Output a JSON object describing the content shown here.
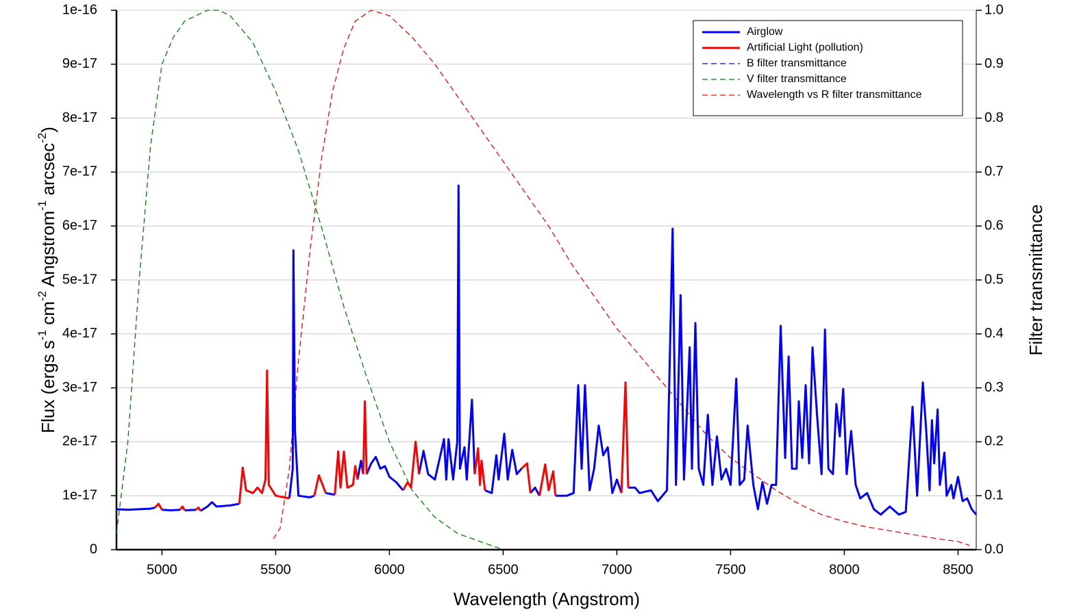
{
  "chart_data": {
    "type": "line",
    "xlabel": "Wavelength (Angstrom)",
    "ylabel_parts": [
      "Flux (ergs s",
      "-1",
      " cm",
      "-2",
      " Angstrom",
      "-1",
      " arcsec",
      "-2",
      ")"
    ],
    "y2label": "Filter transmittance",
    "xlim": [
      4800,
      8580
    ],
    "xticks": [
      5000,
      5500,
      6000,
      6500,
      7000,
      7500,
      8000,
      8500
    ],
    "ylim": [
      0,
      1e-16
    ],
    "yticks": [
      0,
      1e-17,
      2e-17,
      3e-17,
      4e-17,
      5e-17,
      6e-17,
      7e-17,
      8e-17,
      9e-17,
      1e-16
    ],
    "y2lim": [
      0,
      1
    ],
    "y2ticks": [
      {
        "value": 0,
        "label": "0.0"
      },
      0.1,
      0.2,
      0.3,
      0.4,
      0.5,
      0.6,
      0.7,
      0.8,
      0.9,
      {
        "value": 1,
        "label": "1.0"
      }
    ],
    "grid": true,
    "legend": "upper right",
    "series": [
      {
        "name": "Airglow",
        "color": "#0000ff",
        "dash": false,
        "axis": "y",
        "x": [
          4800,
          4850,
          4900,
          4950,
          4970,
          4985,
          5000,
          5040,
          5080,
          5090,
          5100,
          5150,
          5160,
          5170,
          5200,
          5220,
          5240,
          5300,
          5340,
          5450,
          5560,
          5575,
          5578,
          5585,
          5600,
          5650,
          5670,
          5690,
          5720,
          5760,
          5800,
          5860,
          5875,
          5885,
          5890,
          5900,
          5920,
          5940,
          5960,
          5980,
          6000,
          6030,
          6060,
          6100,
          6130,
          6150,
          6170,
          6200,
          6240,
          6250,
          6260,
          6280,
          6298,
          6304,
          6310,
          6330,
          6340,
          6363,
          6375,
          6400,
          6420,
          6450,
          6470,
          6480,
          6505,
          6520,
          6540,
          6560,
          6580,
          6600,
          6620,
          6640,
          6660,
          6700,
          6730,
          6780,
          6810,
          6830,
          6845,
          6860,
          6880,
          6900,
          6920,
          6940,
          6960,
          6980,
          7000,
          7020,
          7040,
          7050,
          7080,
          7100,
          7150,
          7180,
          7220,
          7245,
          7260,
          7280,
          7295,
          7320,
          7330,
          7345,
          7360,
          7380,
          7400,
          7420,
          7440,
          7460,
          7480,
          7500,
          7525,
          7540,
          7560,
          7575,
          7600,
          7620,
          7640,
          7660,
          7680,
          7700,
          7720,
          7740,
          7755,
          7770,
          7790,
          7800,
          7815,
          7830,
          7845,
          7860,
          7880,
          7900,
          7915,
          7930,
          7950,
          7965,
          7980,
          7995,
          8010,
          8030,
          8050,
          8070,
          8100,
          8130,
          8160,
          8200,
          8240,
          8270,
          8290,
          8300,
          8320,
          8345,
          8360,
          8375,
          8385,
          8395,
          8410,
          8420,
          8440,
          8450,
          8470,
          8480,
          8500,
          8520,
          8540,
          8560,
          8580
        ],
        "values": [
          7.5e-18,
          7.4e-18,
          7.5e-18,
          7.6e-18,
          7.8e-18,
          null,
          7.4e-18,
          7.3e-18,
          7.4e-18,
          null,
          7.3e-18,
          7.4e-18,
          null,
          7.2e-18,
          8e-18,
          8.8e-18,
          8e-18,
          8.2e-18,
          8.5e-18,
          null,
          9.5e-18,
          1.5e-17,
          5.55e-17,
          2.2e-17,
          1e-17,
          9.7e-18,
          1e-17,
          null,
          1.05e-17,
          1.02e-17,
          null,
          1.3e-17,
          1.65e-17,
          1.4e-17,
          null,
          1.4e-17,
          1.6e-17,
          1.72e-17,
          1.5e-17,
          1.55e-17,
          1.35e-17,
          1.25e-17,
          1.1e-17,
          null,
          1.4e-17,
          1.83e-17,
          1.4e-17,
          1.3e-17,
          2.05e-17,
          1.3e-17,
          2.05e-17,
          1.3e-17,
          2e-17,
          6.75e-17,
          1.5e-17,
          1.9e-17,
          1.3e-17,
          2.78e-17,
          1.4e-17,
          null,
          1.1e-17,
          1.05e-17,
          1.75e-17,
          1.3e-17,
          2.15e-17,
          1.3e-17,
          1.85e-17,
          1.4e-17,
          1.5e-17,
          null,
          1.05e-17,
          1.15e-17,
          1e-17,
          null,
          1e-17,
          1e-17,
          1.05e-17,
          3.05e-17,
          1.5e-17,
          3.05e-17,
          1.1e-17,
          1.5e-17,
          2.3e-17,
          1.75e-17,
          1.9e-17,
          1.05e-17,
          1.3e-17,
          1.05e-17,
          null,
          1.15e-17,
          1.15e-17,
          1.05e-17,
          1.1e-17,
          9e-18,
          1.1e-17,
          5.95e-17,
          1.2e-17,
          4.72e-17,
          1.3e-17,
          3.75e-17,
          1.5e-17,
          4.2e-17,
          1.5e-17,
          1.2e-17,
          2.5e-17,
          1.2e-17,
          2.1e-17,
          1.3e-17,
          1.5e-17,
          1.2e-17,
          3.17e-17,
          1.2e-17,
          1.3e-17,
          2.3e-17,
          1.2e-17,
          7.5e-18,
          1.25e-17,
          8.5e-18,
          1.2e-17,
          1.2e-17,
          4.15e-17,
          1.7e-17,
          3.58e-17,
          1.5e-17,
          1.5e-17,
          2.75e-17,
          1.7e-17,
          3.05e-17,
          1.6e-17,
          3.75e-17,
          2.5e-17,
          1.4e-17,
          4.08e-17,
          1.5e-17,
          1.4e-17,
          2.7e-17,
          2.1e-17,
          2.98e-17,
          1.4e-17,
          2.2e-17,
          1.2e-17,
          9.5e-18,
          1.05e-17,
          7.5e-18,
          6.5e-18,
          8e-18,
          6.5e-18,
          7e-18,
          2e-17,
          2.65e-17,
          1e-17,
          3.1e-17,
          2.2e-17,
          1.1e-17,
          2.4e-17,
          1.6e-17,
          2.6e-17,
          1.2e-17,
          1.8e-17,
          1e-17,
          1.2e-17,
          9.5e-18,
          1.35e-17,
          9e-18,
          9.5e-18,
          7.5e-18,
          6.5e-18
        ]
      },
      {
        "name": "Artificial Light (pollution)",
        "color": "#ff0000",
        "dash": false,
        "axis": "y",
        "x": [
          4970,
          4985,
          5000,
          5040,
          5080,
          5090,
          5100,
          5125,
          5150,
          5160,
          5170,
          5250,
          5340,
          5355,
          5370,
          5400,
          5420,
          5440,
          5455,
          5462,
          5470,
          5500,
          5560,
          5620,
          5670,
          5690,
          5720,
          5740,
          5760,
          5775,
          5785,
          5800,
          5815,
          5840,
          5850,
          5860,
          5870,
          5885,
          5892,
          5900,
          6000,
          6060,
          6080,
          6095,
          6115,
          6130,
          6250,
          6375,
          6390,
          6398,
          6405,
          6420,
          6500,
          6580,
          6605,
          6620,
          6640,
          6660,
          6685,
          6700,
          6720,
          6730,
          6900,
          7020,
          7038,
          7050
        ],
        "values": [
          7.8e-18,
          8.5e-18,
          7.4e-18,
          null,
          7.4e-18,
          8e-18,
          7.3e-18,
          null,
          7.4e-18,
          7.8e-18,
          7.2e-18,
          null,
          8.5e-18,
          1.52e-17,
          1.1e-17,
          1.05e-17,
          1.15e-17,
          1.05e-17,
          1.3e-17,
          3.32e-17,
          1.2e-17,
          1e-17,
          9.5e-18,
          null,
          1e-17,
          1.38e-17,
          1.05e-17,
          null,
          1.02e-17,
          1.82e-17,
          1.15e-17,
          1.82e-17,
          1.15e-17,
          1.2e-17,
          1.55e-17,
          1.3e-17,
          null,
          1.4e-17,
          2.75e-17,
          1.4e-17,
          null,
          1.1e-17,
          1.25e-17,
          1.15e-17,
          2e-17,
          1.4e-17,
          null,
          1.4e-17,
          1.88e-17,
          1.2e-17,
          1.65e-17,
          1.1e-17,
          null,
          1.5e-17,
          1.6e-17,
          1.05e-17,
          null,
          1e-17,
          1.58e-17,
          1.1e-17,
          1.45e-17,
          1e-17,
          null,
          1.05e-17,
          3.1e-17,
          1.15e-17
        ]
      },
      {
        "name": "B filter transmittance",
        "color": "#0000cc",
        "dash": true,
        "axis": "y2",
        "x": [],
        "values": []
      },
      {
        "name": "V filter transmittance",
        "color": "#008000",
        "dash": true,
        "axis": "y2",
        "x": [
          4800,
          4850,
          4900,
          4950,
          5000,
          5050,
          5100,
          5200,
          5250,
          5300,
          5400,
          5500,
          5600,
          5700,
          5800,
          5900,
          6000,
          6100,
          6200,
          6300,
          6400,
          6500
        ],
        "values": [
          0.03,
          0.2,
          0.5,
          0.75,
          0.9,
          0.95,
          0.98,
          1.0,
          1.0,
          0.99,
          0.94,
          0.85,
          0.74,
          0.6,
          0.45,
          0.32,
          0.2,
          0.11,
          0.06,
          0.03,
          0.015,
          0.0
        ]
      },
      {
        "name": "Wavelength vs R filter transmittance",
        "color": "#ff0000",
        "dash": true,
        "axis": "y2",
        "x": [
          5490,
          5520,
          5560,
          5600,
          5650,
          5700,
          5750,
          5800,
          5850,
          5920,
          6000,
          6100,
          6200,
          6300,
          6400,
          6500,
          6600,
          6700,
          6800,
          6900,
          7000,
          7100,
          7200,
          7300,
          7400,
          7500,
          7600,
          7700,
          7800,
          7900,
          8000,
          8100,
          8200,
          8300,
          8400,
          8500,
          8550
        ],
        "values": [
          0.02,
          0.04,
          0.15,
          0.35,
          0.55,
          0.72,
          0.85,
          0.93,
          0.98,
          1.0,
          0.99,
          0.95,
          0.9,
          0.84,
          0.78,
          0.72,
          0.66,
          0.6,
          0.53,
          0.47,
          0.41,
          0.36,
          0.31,
          0.26,
          0.21,
          0.17,
          0.14,
          0.11,
          0.085,
          0.065,
          0.052,
          0.042,
          0.035,
          0.028,
          0.021,
          0.015,
          0.008
        ]
      }
    ]
  }
}
